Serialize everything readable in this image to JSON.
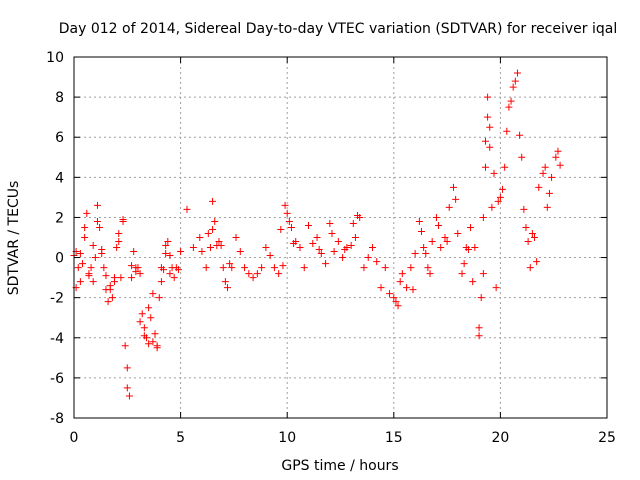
{
  "chart_data": {
    "type": "scatter",
    "title": "Day 012 of 2014, Sidereal Day-to-day VTEC variation (SDTVAR) for receiver iqal",
    "xlabel": "GPS time / hours",
    "ylabel": "SDTVAR / TECUs",
    "xlim": [
      0,
      25
    ],
    "ylim": [
      -8,
      10
    ],
    "xticks": [
      0,
      5,
      10,
      15,
      20,
      25
    ],
    "xtick_labels": [
      "0",
      "5",
      "10",
      "15",
      "20",
      "25"
    ],
    "yticks": [
      -8,
      -6,
      -4,
      -2,
      0,
      2,
      4,
      6,
      8,
      10
    ],
    "ytick_labels": [
      "-8",
      "-6",
      "-4",
      "-2",
      "0",
      "2",
      "4",
      "6",
      "8",
      "10"
    ],
    "grid": true,
    "marker": "+",
    "series": [
      {
        "name": "SDTVAR",
        "color": "#ff0000",
        "x": [
          0.0,
          0.1,
          0.2,
          0.3,
          0.4,
          0.5,
          0.6,
          0.7,
          0.8,
          0.9,
          1.0,
          1.1,
          1.2,
          1.3,
          1.4,
          1.5,
          1.6,
          1.7,
          1.8,
          1.9,
          2.0,
          2.1,
          2.2,
          2.3,
          2.4,
          2.5,
          2.6,
          2.7,
          2.8,
          2.9,
          3.0,
          3.1,
          3.2,
          3.3,
          3.4,
          3.5,
          3.6,
          3.7,
          3.8,
          3.9,
          4.0,
          4.1,
          4.2,
          4.3,
          4.4,
          4.5,
          4.6,
          4.7,
          4.8,
          4.9,
          5.0,
          5.3,
          5.6,
          5.9,
          6.0,
          6.2,
          6.4,
          6.5,
          6.6,
          6.8,
          7.0,
          7.2,
          7.4,
          7.6,
          7.8,
          8.0,
          8.2,
          8.4,
          8.6,
          8.8,
          9.0,
          9.2,
          9.4,
          9.6,
          9.8,
          10.0,
          10.2,
          10.4,
          10.6,
          10.8,
          11.0,
          11.2,
          11.4,
          11.6,
          11.8,
          12.0,
          12.2,
          12.4,
          12.6,
          12.8,
          13.0,
          13.2,
          13.4,
          13.6,
          13.8,
          14.0,
          14.2,
          14.4,
          14.6,
          14.8,
          15.0,
          15.2,
          15.4,
          15.6,
          15.8,
          16.0,
          16.2,
          16.4,
          16.6,
          16.8,
          17.0,
          17.2,
          17.4,
          17.6,
          17.8,
          18.0,
          18.2,
          18.4,
          18.6,
          18.8,
          19.0,
          19.1,
          19.2,
          19.3,
          19.4,
          19.5,
          19.6,
          19.8,
          20.0,
          20.2,
          20.4,
          20.6,
          20.8,
          21.0,
          21.2,
          21.4,
          21.6,
          21.8,
          22.0,
          22.2,
          22.4,
          22.6,
          22.8,
          0.1,
          0.3,
          0.5,
          0.7,
          0.9,
          1.1,
          1.3,
          1.5,
          1.7,
          1.9,
          2.1,
          2.3,
          2.5,
          2.7,
          2.9,
          3.1,
          3.3,
          3.5,
          3.7,
          3.9,
          4.1,
          4.3,
          4.5,
          6.3,
          6.5,
          6.7,
          6.9,
          7.1,
          7.3,
          9.7,
          9.9,
          10.1,
          10.3,
          11.5,
          12.1,
          12.7,
          13.1,
          13.3,
          15.1,
          15.3,
          15.9,
          16.3,
          16.5,
          16.7,
          17.1,
          17.5,
          17.9,
          18.3,
          18.5,
          18.7,
          19.0,
          19.2,
          19.3,
          19.4,
          19.5,
          19.7,
          19.9,
          20.1,
          20.3,
          20.5,
          20.7,
          20.9,
          21.1,
          21.3,
          21.5,
          21.7,
          22.1,
          22.3,
          22.7
        ],
        "y": [
          0.1,
          -1.5,
          -0.5,
          0.2,
          -0.3,
          1.0,
          2.2,
          -0.8,
          -0.5,
          -1.2,
          0.0,
          2.6,
          1.5,
          0.2,
          -0.5,
          -1.6,
          -2.2,
          -1.4,
          -2.0,
          -1.2,
          0.5,
          1.2,
          -1.0,
          1.8,
          -4.4,
          -6.5,
          -6.9,
          -1.0,
          0.3,
          -0.5,
          -0.5,
          -0.8,
          -2.8,
          -3.5,
          -4.0,
          -2.5,
          -3.0,
          -4.2,
          -3.8,
          -4.4,
          -2.0,
          -1.2,
          -0.6,
          0.2,
          0.8,
          -0.8,
          -0.5,
          -1.0,
          -0.5,
          -0.6,
          0.3,
          2.4,
          0.5,
          1.0,
          0.3,
          -0.5,
          0.5,
          2.8,
          1.8,
          0.8,
          -0.5,
          -1.5,
          -0.5,
          1.0,
          0.3,
          -0.5,
          -0.8,
          -1.0,
          -0.8,
          -0.5,
          0.5,
          0.1,
          -0.5,
          -0.8,
          -0.4,
          2.2,
          1.5,
          0.8,
          0.5,
          -0.5,
          1.6,
          0.7,
          1.0,
          0.2,
          -0.3,
          1.7,
          0.3,
          0.8,
          0.0,
          0.5,
          0.6,
          1.0,
          2.0,
          -0.5,
          0.0,
          0.5,
          -0.2,
          -1.5,
          -0.5,
          -1.8,
          -2.0,
          -2.4,
          -0.8,
          -1.5,
          -0.5,
          0.2,
          1.8,
          0.5,
          -0.5,
          0.8,
          2.0,
          0.5,
          1.0,
          2.5,
          3.5,
          1.2,
          -0.8,
          0.5,
          1.5,
          0.5,
          -3.9,
          -2.0,
          2.0,
          4.5,
          7.0,
          5.5,
          2.5,
          -1.5,
          3.0,
          4.5,
          7.5,
          8.5,
          9.2,
          5.0,
          1.5,
          -0.5,
          1.0,
          3.5,
          4.2,
          2.5,
          4.0,
          5.0,
          4.6,
          0.3,
          -1.2,
          1.5,
          -0.9,
          0.6,
          1.8,
          0.4,
          -0.9,
          -1.6,
          -1.0,
          0.8,
          1.9,
          -5.5,
          -0.4,
          -0.7,
          -3.2,
          -3.9,
          -4.3,
          -1.8,
          -4.5,
          -0.5,
          0.6,
          0.1,
          1.2,
          1.4,
          0.6,
          0.6,
          -1.2,
          -0.3,
          1.4,
          2.6,
          1.8,
          0.7,
          0.4,
          1.2,
          0.4,
          1.7,
          2.1,
          -2.2,
          -1.2,
          -1.6,
          1.3,
          0.2,
          -0.8,
          1.6,
          0.8,
          2.9,
          -0.3,
          0.4,
          -1.2,
          -3.5,
          -0.8,
          5.8,
          8.0,
          6.5,
          4.2,
          2.8,
          3.4,
          6.3,
          7.8,
          8.8,
          6.1,
          2.4,
          0.8,
          1.2,
          -0.2,
          4.5,
          3.2,
          5.3
        ]
      }
    ]
  }
}
